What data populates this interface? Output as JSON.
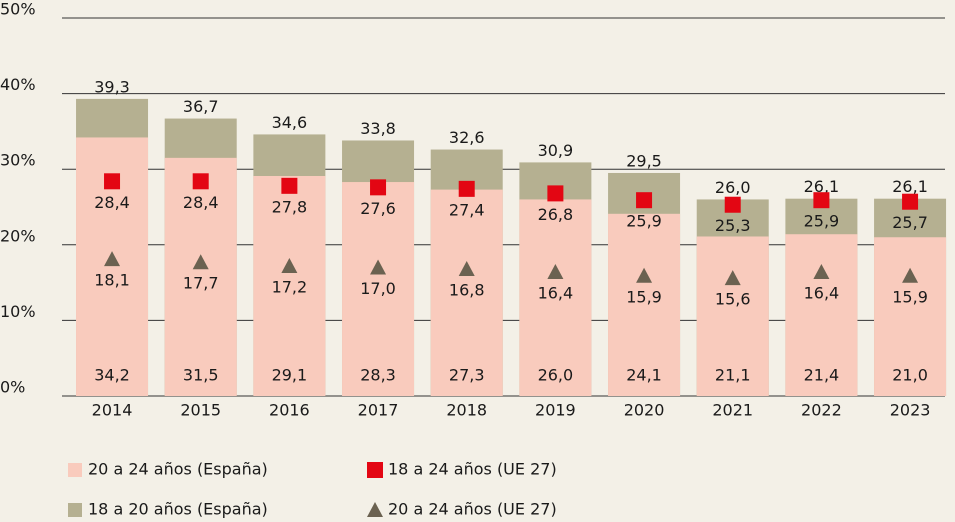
{
  "chart_data": {
    "type": "bar",
    "categories": [
      "2014",
      "2015",
      "2016",
      "2017",
      "2018",
      "2019",
      "2020",
      "2021",
      "2022",
      "2023"
    ],
    "series": [
      {
        "name": "20 a 24 años (España)",
        "type": "bar",
        "color": "#f9cbbd",
        "values": [
          34.2,
          31.5,
          29.1,
          28.3,
          27.3,
          26.0,
          24.1,
          21.1,
          21.4,
          21.0
        ],
        "value_labels": [
          "34,2",
          "31,5",
          "29,1",
          "28,3",
          "27,3",
          "26,0",
          "24,1",
          "21,1",
          "21,4",
          "21,0"
        ]
      },
      {
        "name": "18 a 20 años (España)",
        "type": "bar",
        "color": "#b5b091",
        "values": [
          39.3,
          36.7,
          34.6,
          33.8,
          32.6,
          30.9,
          29.5,
          26.0,
          26.1,
          26.1
        ],
        "value_labels": [
          "39,3",
          "36,7",
          "34,6",
          "33,8",
          "32,6",
          "30,9",
          "29,5",
          "26,0",
          "26,1",
          "26,1"
        ]
      },
      {
        "name": "18 a 24 años (UE 27)",
        "type": "scatter",
        "marker": "square",
        "color": "#e30613",
        "values": [
          28.4,
          28.4,
          27.8,
          27.6,
          27.4,
          26.8,
          25.9,
          25.3,
          25.9,
          25.7
        ],
        "value_labels": [
          "28,4",
          "28,4",
          "27,8",
          "27,6",
          "27,4",
          "26,8",
          "25,9",
          "25,3",
          "25,9",
          "25,7"
        ]
      },
      {
        "name": "20 a 24 años (UE 27)",
        "type": "scatter",
        "marker": "triangle",
        "color": "#6b6251",
        "values": [
          18.1,
          17.7,
          17.2,
          17.0,
          16.8,
          16.4,
          15.9,
          15.6,
          16.4,
          15.9
        ],
        "value_labels": [
          "18,1",
          "17,7",
          "17,2",
          "17,0",
          "16,8",
          "16,4",
          "15,9",
          "15,6",
          "16,4",
          "15,9"
        ]
      }
    ],
    "ylim": [
      0,
      50
    ],
    "yticks": [
      {
        "value": 0,
        "label": "0%"
      },
      {
        "value": 10,
        "label": "10%"
      },
      {
        "value": 20,
        "label": "20%"
      },
      {
        "value": 30,
        "label": "30%"
      },
      {
        "value": 40,
        "label": "40%"
      },
      {
        "value": 50,
        "label": "50%"
      }
    ],
    "grid": true
  }
}
